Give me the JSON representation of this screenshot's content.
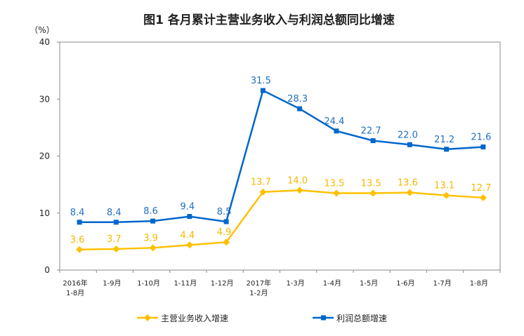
{
  "chart_data": {
    "type": "line",
    "title": "图1  各月累计主营业务收入与利润总额同比增速",
    "ylabel": "（%）",
    "ylim": [
      0,
      40
    ],
    "yticks": [
      "0",
      "10",
      "20",
      "30",
      "40"
    ],
    "grid": false,
    "legend_position": "bottom",
    "categories": [
      [
        "2016年",
        "1-8月"
      ],
      [
        "1-9月"
      ],
      [
        "1-10月"
      ],
      [
        "1-11月"
      ],
      [
        "1-12月"
      ],
      [
        "2017年",
        "1-2月"
      ],
      [
        "1-3月"
      ],
      [
        "1-4月"
      ],
      [
        "1-5月"
      ],
      [
        "1-6月"
      ],
      [
        "1-7月"
      ],
      [
        "1-8月"
      ]
    ],
    "series": [
      {
        "name": "主营业务收入增速",
        "color": "#FFC000",
        "marker": "diamond",
        "label_color": "#F5B800",
        "values": [
          3.6,
          3.7,
          3.9,
          4.4,
          4.9,
          13.7,
          14.0,
          13.5,
          13.5,
          13.6,
          13.1,
          12.7
        ],
        "labels": [
          "3.6",
          "3.7",
          "3.9",
          "4.4",
          "4.9",
          "13.7",
          "14.0",
          "13.5",
          "13.5",
          "13.6",
          "13.1",
          "12.7"
        ]
      },
      {
        "name": "利润总额增速",
        "color": "#0066CC",
        "marker": "square",
        "label_color": "#1F6FC5",
        "values": [
          8.4,
          8.4,
          8.6,
          9.4,
          8.5,
          31.5,
          28.3,
          24.4,
          22.7,
          22.0,
          21.2,
          21.6
        ],
        "labels": [
          "8.4",
          "8.4",
          "8.6",
          "9.4",
          "8.5",
          "31.5",
          "28.3",
          "24.4",
          "22.7",
          "22.0",
          "21.2",
          "21.6"
        ]
      }
    ]
  }
}
